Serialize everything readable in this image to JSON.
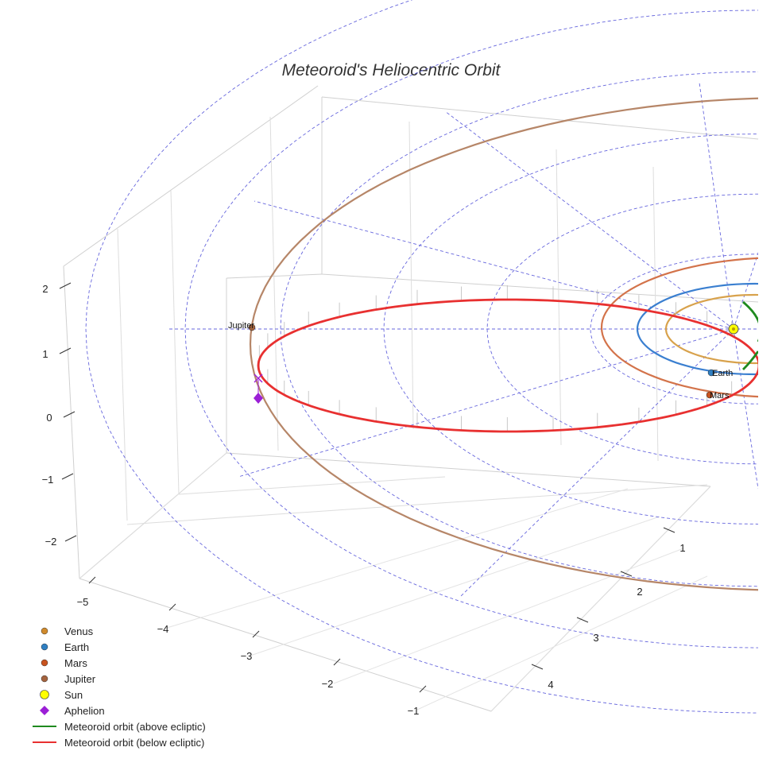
{
  "chart_data": {
    "type": "scatter3d",
    "title": "Meteoroid's Heliocentric Orbit",
    "axes": {
      "x": {
        "tick_labels": [
          "1",
          "2",
          "3",
          "4"
        ]
      },
      "y": {
        "tick_labels": [
          "−5",
          "−4",
          "−3",
          "−2",
          "−1"
        ]
      },
      "z": {
        "tick_labels": [
          "2",
          "1",
          "0",
          "−1",
          "−2"
        ]
      }
    },
    "grid": "on",
    "ecliptic_reference_grid": "dashed",
    "legend": {
      "placement": "bottom-left",
      "entries": [
        {
          "label": "Venus",
          "marker": "circle",
          "color": "#d08a2c"
        },
        {
          "label": "Earth",
          "marker": "circle",
          "color": "#2f7fc2"
        },
        {
          "label": "Mars",
          "marker": "circle",
          "color": "#c8531f"
        },
        {
          "label": "Jupiter",
          "marker": "circle",
          "color": "#a4633e"
        },
        {
          "label": "Sun",
          "marker": "circle-large",
          "color": "#ffff00"
        },
        {
          "label": "Aphelion",
          "marker": "diamond",
          "color": "#9b1fd6"
        },
        {
          "label": "Meteoroid orbit (above ecliptic)",
          "marker": "line",
          "color": "#1f8a1f"
        },
        {
          "label": "Meteoroid orbit (below ecliptic)",
          "marker": "line",
          "color": "#e83030"
        }
      ]
    },
    "annotations": [
      {
        "text": "Jupiter"
      },
      {
        "text": "Earth"
      },
      {
        "text": "Mars"
      }
    ],
    "orbit_colors": {
      "venus": "#d8a24c",
      "earth": "#3a7fd0",
      "mars": "#d3734a",
      "jupiter": "#b68668",
      "meteoroid_above": "#1f8a1f",
      "meteoroid_below": "#e83030",
      "grid": "#6666dd",
      "box": "#d0d0d0"
    }
  }
}
